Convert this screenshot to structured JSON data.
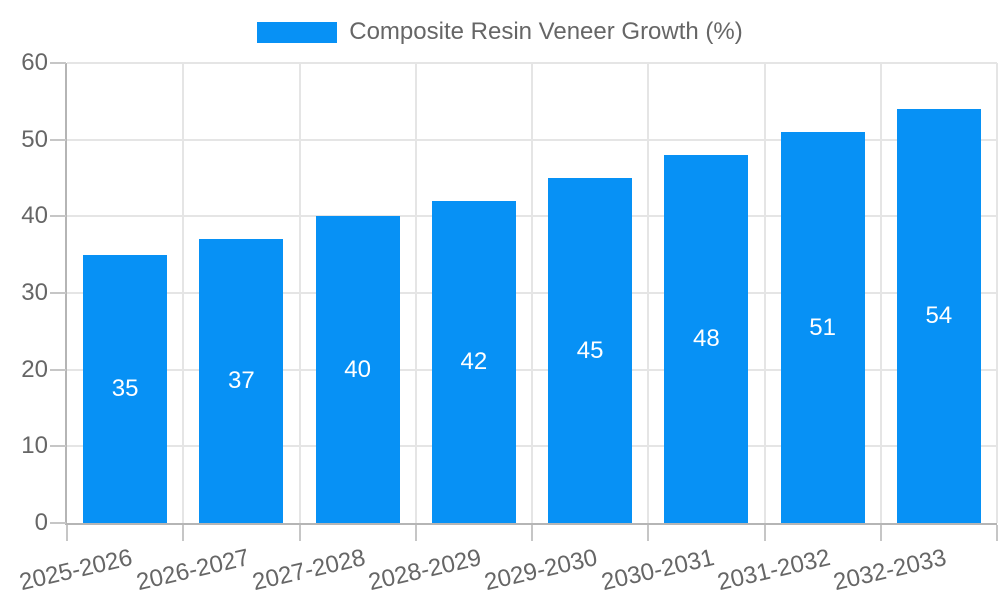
{
  "chart_data": {
    "type": "bar",
    "title": "",
    "legend_label": "Composite Resin Veneer Growth (%)",
    "legend_position": "top",
    "categories": [
      "2025-2026",
      "2026-2027",
      "2027-2028",
      "2028-2029",
      "2029-2030",
      "2030-2031",
      "2031-2032",
      "2032-2033"
    ],
    "values": [
      35,
      37,
      40,
      42,
      45,
      48,
      51,
      54
    ],
    "series": [
      {
        "name": "Composite Resin Veneer Growth (%)",
        "values": [
          35,
          37,
          40,
          42,
          45,
          48,
          51,
          54
        ]
      }
    ],
    "xlabel": "",
    "ylabel": "",
    "ylim": [
      0,
      60
    ],
    "yticks": [
      0,
      10,
      20,
      30,
      40,
      50,
      60
    ],
    "grid": true,
    "bar_color": "#0791f5",
    "value_label_color": "#ffffff",
    "axis_text_color": "#666666",
    "grid_color": "#e5e5e5",
    "axis_line_color": "#b5b5b5",
    "tick_color": "#c6c6c6",
    "background": "#ffffff"
  }
}
